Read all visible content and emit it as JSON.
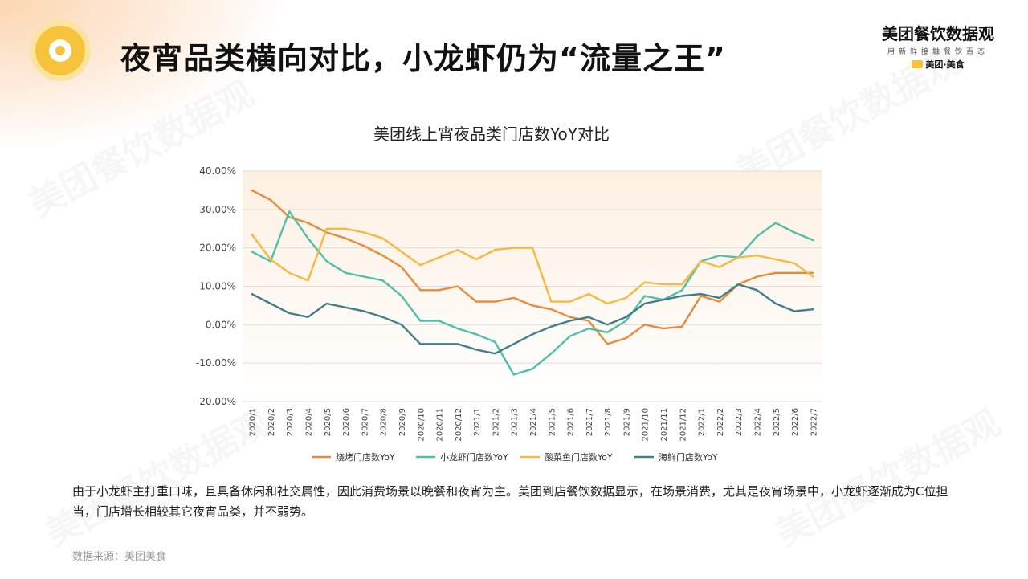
{
  "header": {
    "title": "夜宵品类横向对比，小龙虾仍为“流量之王”",
    "brand_name": "美团餐饮数据观",
    "brand_tagline": "用新鲜接触餐饮百态",
    "brand_sub": "美团·美食"
  },
  "watermark_text": "美团餐饮数据观",
  "colors": {
    "plot_bg_top": "#fdf0e2",
    "plot_bg_bottom": "#ffffff",
    "grid": "#dcdcdc"
  },
  "chart_data": {
    "type": "line",
    "title": "美团线上宵夜品类门店数YoY对比",
    "xlabel": "",
    "ylabel": "",
    "ylim": [
      -0.2,
      0.4
    ],
    "yticks": [
      0.4,
      0.3,
      0.2,
      0.1,
      0.0,
      -0.1,
      -0.2
    ],
    "ytick_labels": [
      "40.00%",
      "30.00%",
      "20.00%",
      "10.00%",
      "0.00%",
      "-10.00%",
      "-20.00%"
    ],
    "grid": "horizontal",
    "legend_position": "bottom",
    "categories": [
      "2020/1",
      "2020/2",
      "2020/3",
      "2020/4",
      "2020/5",
      "2020/6",
      "2020/7",
      "2020/8",
      "2020/9",
      "2020/10",
      "2020/11",
      "2020/12",
      "2021/1",
      "2021/2",
      "2021/3",
      "2021/4",
      "2021/5",
      "2021/6",
      "2021/7",
      "2021/8",
      "2021/9",
      "2021/10",
      "2021/11",
      "2021/12",
      "2022/1",
      "2022/2",
      "2022/3",
      "2022/4",
      "2022/5",
      "2022/6",
      "2022/7"
    ],
    "series": [
      {
        "name": "烧烤门店数YoY",
        "color": "#e88a3a",
        "values": [
          0.35,
          0.325,
          0.28,
          0.265,
          0.24,
          0.225,
          0.205,
          0.18,
          0.15,
          0.09,
          0.09,
          0.1,
          0.06,
          0.06,
          0.07,
          0.05,
          0.04,
          0.02,
          0.01,
          -0.05,
          -0.035,
          0.0,
          -0.01,
          -0.005,
          0.075,
          0.06,
          0.105,
          0.125,
          0.135,
          0.135,
          0.135
        ]
      },
      {
        "name": "小龙虾门店数YoY",
        "color": "#4fbfa9",
        "values": [
          0.19,
          0.165,
          0.295,
          0.225,
          0.165,
          0.135,
          0.125,
          0.115,
          0.075,
          0.01,
          0.01,
          -0.01,
          -0.025,
          -0.045,
          -0.13,
          -0.115,
          -0.075,
          -0.03,
          -0.01,
          -0.02,
          0.01,
          0.075,
          0.065,
          0.09,
          0.165,
          0.18,
          0.175,
          0.23,
          0.265,
          0.24,
          0.22
        ]
      },
      {
        "name": "酸菜鱼门店数YoY",
        "color": "#f6b93f",
        "values": [
          0.235,
          0.17,
          0.135,
          0.115,
          0.25,
          0.25,
          0.24,
          0.225,
          0.19,
          0.155,
          0.175,
          0.195,
          0.17,
          0.195,
          0.2,
          0.2,
          0.06,
          0.06,
          0.08,
          0.055,
          0.07,
          0.11,
          0.105,
          0.105,
          0.165,
          0.15,
          0.175,
          0.18,
          0.17,
          0.16,
          0.125
        ]
      },
      {
        "name": "海鲜门店数YoY",
        "color": "#3f7f87",
        "values": [
          0.08,
          0.055,
          0.03,
          0.02,
          0.055,
          0.045,
          0.035,
          0.02,
          0.0,
          -0.05,
          -0.05,
          -0.05,
          -0.065,
          -0.075,
          -0.05,
          -0.025,
          -0.005,
          0.01,
          0.02,
          0.0,
          0.02,
          0.055,
          0.065,
          0.075,
          0.08,
          0.07,
          0.105,
          0.09,
          0.055,
          0.035,
          0.04
        ]
      }
    ]
  },
  "body_text": "由于小龙虾主打重口味，且具备休闲和社交属性，因此消费场景以晚餐和夜宵为主。美团到店餐饮数据显示，在场景消费，尤其是夜宵场景中，小龙虾逐渐成为C位担当，门店增长相较其它夜宵品类，并不弱势。",
  "source_text": "数据来源：美团美食"
}
